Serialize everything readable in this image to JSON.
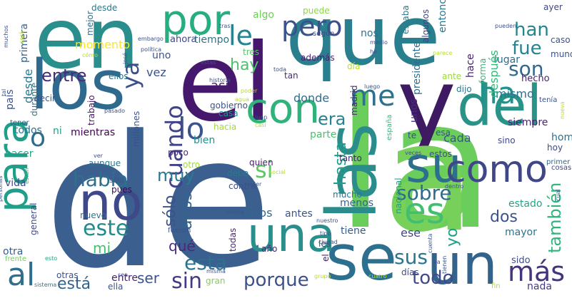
{
  "word_cloud": {
    "words": [
      {
        "text": "de",
        "color": "#3b5f8f"
      },
      {
        "text": "la",
        "color": "#6acd5c"
      },
      {
        "text": "que",
        "color": "#2a7f8e"
      },
      {
        "text": "el",
        "color": "#45186d"
      },
      {
        "text": "en",
        "color": "#2a8f8c"
      },
      {
        "text": "y",
        "color": "#3e1a63"
      },
      {
        "text": "los",
        "color": "#2f6a8e"
      },
      {
        "text": "a",
        "color": "#76d05a"
      },
      {
        "text": "se",
        "color": "#2d6f8e"
      },
      {
        "text": "un",
        "color": "#32638d"
      },
      {
        "text": "del",
        "color": "#2a9388"
      },
      {
        "text": "las",
        "color": "#2a8c8b"
      },
      {
        "text": "por",
        "color": "#27ad81"
      },
      {
        "text": "con",
        "color": "#2fb37b"
      },
      {
        "text": "una",
        "color": "#2a8f8c"
      },
      {
        "text": "no",
        "color": "#3f4889"
      },
      {
        "text": "para",
        "color": "#1f9e89"
      },
      {
        "text": "su",
        "color": "#2d708e"
      },
      {
        "text": "como",
        "color": "#3f4788"
      },
      {
        "text": "es",
        "color": "#42be71"
      },
      {
        "text": "al",
        "color": "#2e6e8e"
      },
      {
        "text": "más",
        "color": "#46337e"
      },
      {
        "text": "lo",
        "color": "#3a548c"
      },
      {
        "text": "le",
        "color": "#25848e"
      },
      {
        "text": "pero",
        "color": "#3b518b"
      },
      {
        "text": "me",
        "color": "#2c728e"
      },
      {
        "text": "ha",
        "color": "#21918c"
      },
      {
        "text": "sus",
        "color": "#2b748e"
      },
      {
        "text": "o",
        "color": "#2e6b8e"
      },
      {
        "text": "era",
        "color": "#26828e"
      },
      {
        "text": "había",
        "color": "#2e6f8e"
      },
      {
        "text": "este",
        "color": "#238a8d"
      },
      {
        "text": "sobre",
        "color": "#2f6b8e"
      },
      {
        "text": "cuando",
        "color": "#404387"
      },
      {
        "text": "ya",
        "color": "#3c4f8a"
      },
      {
        "text": "si",
        "color": "#5dc863"
      },
      {
        "text": "son",
        "color": "#31688e"
      },
      {
        "text": "fue",
        "color": "#26828e"
      },
      {
        "text": "han",
        "color": "#25858e"
      },
      {
        "text": "hay",
        "color": "#4cc26c"
      },
      {
        "text": "entre",
        "color": "#472c7a"
      },
      {
        "text": "esta",
        "color": "#2c728e"
      },
      {
        "text": "sin",
        "color": "#443a83"
      },
      {
        "text": "todo",
        "color": "#3e4a89"
      },
      {
        "text": "porque",
        "color": "#3c508b"
      },
      {
        "text": "también",
        "color": "#2fb47c"
      },
      {
        "text": "dos",
        "color": "#3b528b"
      },
      {
        "text": "yo",
        "color": "#1fa088"
      },
      {
        "text": "muy",
        "color": "#2a798e"
      },
      {
        "text": "años",
        "color": "#33638d"
      },
      {
        "text": "sólo",
        "color": "#3b528b"
      },
      {
        "text": "hasta",
        "color": "#1f9e89"
      },
      {
        "text": "mi",
        "color": "#46c06f"
      },
      {
        "text": "qué",
        "color": "#482979"
      },
      {
        "text": "ser",
        "color": "#3a538b"
      },
      {
        "text": "está",
        "color": "#33638d"
      },
      {
        "text": "desde",
        "color": "#2a788e"
      },
      {
        "text": "entre",
        "color": "#482173"
      },
      {
        "text": "vez",
        "color": "#3c4f8a"
      },
      {
        "text": "así",
        "color": "#48186a"
      },
      {
        "text": "donde",
        "color": "#2e6e8e"
      },
      {
        "text": "otros",
        "color": "#31688e"
      },
      {
        "text": "antes",
        "color": "#3a548c"
      },
      {
        "text": "cada",
        "color": "#3a548c"
      },
      {
        "text": "hecho",
        "color": "#481d6f"
      },
      {
        "text": "mismo",
        "color": "#2c728e"
      },
      {
        "text": "ese",
        "color": "#3f4788"
      },
      {
        "text": "tiene",
        "color": "#355e8d"
      },
      {
        "text": "menos",
        "color": "#33638d"
      },
      {
        "text": "siempre",
        "color": "#481f70"
      },
      {
        "text": "hombre",
        "color": "#2d708e"
      },
      {
        "text": "estado",
        "color": "#21a685"
      },
      {
        "text": "mayor",
        "color": "#2c738e"
      },
      {
        "text": "sido",
        "color": "#3e4c8a"
      },
      {
        "text": "nada",
        "color": "#443a83"
      },
      {
        "text": "momento",
        "color": "#fde725"
      },
      {
        "text": "tiempo",
        "color": "#2b758e"
      },
      {
        "text": "ahora",
        "color": "#3f4788"
      },
      {
        "text": "uno",
        "color": "#3a548c"
      },
      {
        "text": "tres",
        "color": "#57c665"
      },
      {
        "text": "algo",
        "color": "#6ece58"
      },
      {
        "text": "puede",
        "color": "#8bd646"
      },
      {
        "text": "según",
        "color": "#404688"
      },
      {
        "text": "nos",
        "color": "#2d718e"
      },
      {
        "text": "además",
        "color": "#481d6f"
      },
      {
        "text": "tan",
        "color": "#472c7a"
      },
      {
        "text": "estaba",
        "color": "#297b8e"
      },
      {
        "text": "entonces",
        "color": "#2a788e"
      },
      {
        "text": "algunos",
        "color": "#404387"
      },
      {
        "text": "forma",
        "color": "#37b878"
      },
      {
        "text": "lugar",
        "color": "#2f6c8e"
      },
      {
        "text": "hace",
        "color": "#482374"
      },
      {
        "text": "ante",
        "color": "#9bd93c"
      },
      {
        "text": "dijo",
        "color": "#2a788e"
      },
      {
        "text": "ayer",
        "color": "#3f4788"
      },
      {
        "text": "caso",
        "color": "#3b528b"
      },
      {
        "text": "mundo",
        "color": "#3b528b"
      },
      {
        "text": "hoy",
        "color": "#3e4989"
      },
      {
        "text": "sino",
        "color": "#3f4788"
      },
      {
        "text": "cosas",
        "color": "#3f4788"
      },
      {
        "text": "primer",
        "color": "#31688e"
      },
      {
        "text": "después",
        "color": "#35b779"
      },
      {
        "text": "presidente",
        "color": "#2e6e8e"
      },
      {
        "text": "día",
        "color": "#b5de2b"
      },
      {
        "text": "unos",
        "color": "#46307e"
      },
      {
        "text": "parte",
        "color": "#4ac16d"
      },
      {
        "text": "madrid",
        "color": "#482677"
      },
      {
        "text": "el",
        "color": "#481a6c"
      },
      {
        "text": "todos",
        "color": "#2c728e"
      },
      {
        "text": "ni",
        "color": "#1fa088"
      },
      {
        "text": "mientras",
        "color": "#440154"
      },
      {
        "text": "millones",
        "color": "#3b528b"
      },
      {
        "text": "trabajo",
        "color": "#471365"
      },
      {
        "text": "gobierno",
        "color": "#3b528b"
      },
      {
        "text": "casa",
        "color": "#1f968b"
      },
      {
        "text": "hacia",
        "color": "#a2da37"
      },
      {
        "text": "bien",
        "color": "#21918c"
      },
      {
        "text": "poco",
        "color": "#482878"
      },
      {
        "text": "otro",
        "color": "#a0da39"
      },
      {
        "text": "aunque",
        "color": "#2b748e"
      },
      {
        "text": "quien",
        "color": "#48186a"
      },
      {
        "text": "debe",
        "color": "#2a788e"
      },
      {
        "text": "contra",
        "color": "#3b528b"
      },
      {
        "text": "mucho",
        "color": "#2b748e"
      },
      {
        "text": "estos",
        "color": "#3b528b"
      },
      {
        "text": "tanto",
        "color": "#482374"
      },
      {
        "text": "pues",
        "color": "#440154"
      },
      {
        "text": "vida",
        "color": "#3e4a89"
      },
      {
        "text": "hacer",
        "color": "#1fa088"
      },
      {
        "text": "nuevo",
        "color": "#2a788e"
      },
      {
        "text": "general",
        "color": "#3e4a89"
      },
      {
        "text": "otra",
        "color": "#355f8d"
      },
      {
        "text": "año",
        "color": "#482374"
      },
      {
        "text": "les",
        "color": "#3c4f8a"
      },
      {
        "text": "gran",
        "color": "#7fd34e"
      },
      {
        "text": "ella",
        "color": "#3b528b"
      },
      {
        "text": "otras",
        "color": "#3b528b"
      },
      {
        "text": "días",
        "color": "#3e4a89"
      },
      {
        "text": "todas",
        "color": "#482576"
      },
      {
        "text": "durante",
        "color": "#2b748e"
      },
      {
        "text": "decir",
        "color": "#3b528b"
      },
      {
        "text": "país",
        "color": "#3b528b"
      },
      {
        "text": "primera",
        "color": "#33638d"
      },
      {
        "text": "mejor",
        "color": "#2e6e8e"
      },
      {
        "text": "desde",
        "color": "#2a788e"
      },
      {
        "text": "nacional",
        "color": "#1fa088"
      },
      {
        "text": "españa",
        "color": "#35b779"
      },
      {
        "text": "ellos",
        "color": "#2b748e"
      },
      {
        "text": "te",
        "color": "#3e4a89"
      },
      {
        "text": "esa",
        "color": "#3b528b"
      },
      {
        "text": "fin",
        "color": "#b5de2b"
      },
      {
        "text": "pueden",
        "color": "#3b528b"
      },
      {
        "text": "parece",
        "color": "#b5de2b"
      },
      {
        "text": "fueron",
        "color": "#3b528b"
      },
      {
        "text": "política",
        "color": "#3b528b"
      },
      {
        "text": "sólo",
        "color": "#3b528b"
      },
      {
        "text": "muchos",
        "color": "#3b528b"
      },
      {
        "text": "tal",
        "color": "#3b528b"
      },
      {
        "text": "será",
        "color": "#b5de2b"
      },
      {
        "text": "tener",
        "color": "#3b528b"
      },
      {
        "text": "están",
        "color": "#35b779"
      },
      {
        "text": "personas",
        "color": "#3b528b"
      },
      {
        "text": "sistema",
        "color": "#2a788e"
      },
      {
        "text": "frente",
        "color": "#6ece58"
      },
      {
        "text": "esto",
        "color": "#1fa088"
      },
      {
        "text": "sea",
        "color": "#3b528b"
      },
      {
        "text": "misma",
        "color": "#3b528b"
      },
      {
        "text": "grupo",
        "color": "#b5de2b"
      },
      {
        "text": "cuatro",
        "color": "#b5de2b"
      },
      {
        "text": "tienen",
        "color": "#3b528b"
      },
      {
        "text": "cuenta",
        "color": "#3b528b"
      },
      {
        "text": "va",
        "color": "#3b528b"
      },
      {
        "text": "ciudad",
        "color": "#3b528b"
      },
      {
        "text": "tipo",
        "color": "#3b528b"
      },
      {
        "text": "nuestro",
        "color": "#3b528b"
      },
      {
        "text": "nunca",
        "color": "#3b528b"
      },
      {
        "text": "mujer",
        "color": "#3b528b"
      },
      {
        "text": "dentro",
        "color": "#3b528b"
      },
      {
        "text": "veces",
        "color": "#3b528b"
      },
      {
        "text": "social",
        "color": "#b5de2b"
      },
      {
        "text": "casi",
        "color": "#b5de2b"
      },
      {
        "text": "juan",
        "color": "#3b528b"
      },
      {
        "text": "ver",
        "color": "#3b528b"
      },
      {
        "text": "pasado",
        "color": "#3b528b"
      },
      {
        "text": "agua",
        "color": "#b5de2b"
      },
      {
        "text": "poder",
        "color": "#b5de2b"
      },
      {
        "text": "historia",
        "color": "#3b528b"
      },
      {
        "text": "estas",
        "color": "#3b528b"
      },
      {
        "text": "toda",
        "color": "#3b528b"
      },
      {
        "text": "luego",
        "color": "#3b528b"
      },
      {
        "text": "he",
        "color": "#3b528b"
      },
      {
        "text": "medio",
        "color": "#3b528b"
      },
      {
        "text": "cómo",
        "color": "#b5de2b"
      },
      {
        "text": "tras",
        "color": "#3b528b"
      },
      {
        "text": "embargo",
        "color": "#3b528b"
      },
      {
        "text": "josé",
        "color": "#3b528b"
      },
      {
        "text": "nueva",
        "color": "#b5de2b"
      },
      {
        "text": "cual",
        "color": "#3b528b"
      },
      {
        "text": "tenía",
        "color": "#3b528b"
      },
      {
        "text": "sí",
        "color": "#3b528b"
      }
    ]
  }
}
